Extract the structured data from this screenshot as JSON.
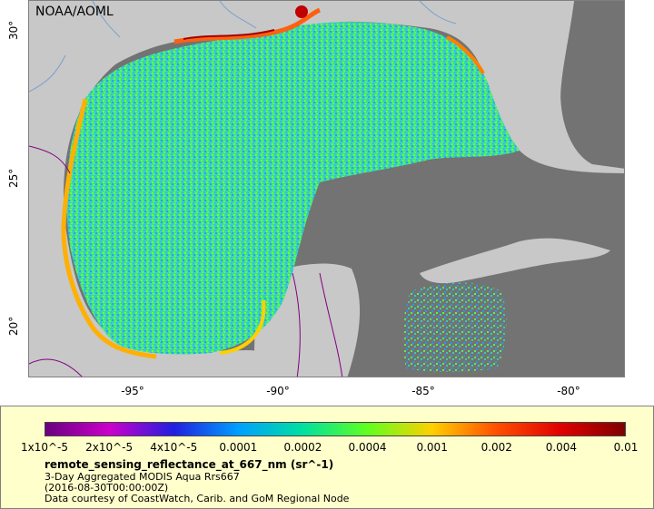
{
  "map": {
    "credit": "NOAA/AOML",
    "land_color": "#c8c8c8",
    "water_color": "#737373",
    "lat_labels": [
      "30°",
      "25°",
      "20°"
    ],
    "lon_labels": [
      "-95°",
      "-90°",
      "-85°",
      "-80°"
    ]
  },
  "legend": {
    "tick_labels": [
      "1x10^-5",
      "2x10^-5",
      "4x10^-5",
      "0.0001",
      "0.0002",
      "0.0004",
      "0.001",
      "0.002",
      "0.004",
      "0.01"
    ],
    "title": "remote_sensing_reflectance_at_667_nm (sr^-1)",
    "line1": "3-Day Aggregated MODIS Aqua Rrs667",
    "line2": "(2016-08-30T00:00:00Z)",
    "line3": "Data courtesy of CoastWatch, Carib. and GoM Regional Node",
    "colors": [
      "#6a0080",
      "#cc00cc",
      "#2020e0",
      "#00a0ff",
      "#00e0a0",
      "#60ff20",
      "#ffd000",
      "#ff5000",
      "#e00000",
      "#800000"
    ]
  }
}
